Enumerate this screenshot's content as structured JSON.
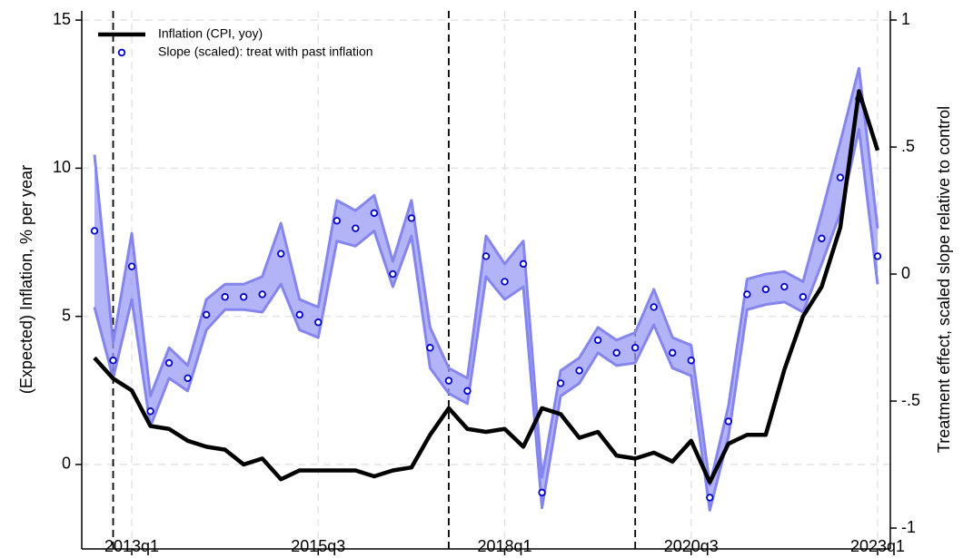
{
  "chart_data": {
    "type": "line",
    "y_label": "(Expected) Inflation, % per year",
    "y2_label": "Treatment effect, scaled slope relative to control",
    "categories": [
      null,
      null,
      "2013q1",
      null,
      null,
      null,
      null,
      null,
      null,
      null,
      null,
      null,
      "2015q3",
      null,
      null,
      null,
      null,
      null,
      null,
      null,
      null,
      null,
      "2018q1",
      null,
      null,
      null,
      null,
      null,
      null,
      null,
      null,
      null,
      "2020q3",
      null,
      null,
      null,
      null,
      null,
      null,
      null,
      null,
      null,
      "2023q1"
    ],
    "ylim": [
      -2.85,
      15.31
    ],
    "yticks": [
      0,
      5,
      10,
      15
    ],
    "y2lim": [
      -1.082,
      1.036
    ],
    "y2ticks": [
      -1,
      {
        "value": -0.5,
        "label": "-.5"
      },
      0,
      {
        "value": 0.5,
        "label": ".5"
      },
      1
    ],
    "grid": true,
    "legend": "top-left",
    "series": [
      {
        "name": "Inflation (CPI, yoy)",
        "type": "line",
        "color": "#000000",
        "values": [
          3.6,
          2.9,
          2.5,
          1.3,
          1.2,
          0.8,
          0.6,
          0.5,
          0.0,
          0.2,
          -0.5,
          -0.2,
          -0.2,
          -0.2,
          -0.2,
          -0.4,
          -0.2,
          -0.1,
          1.0,
          1.9,
          1.2,
          1.1,
          1.2,
          0.6,
          1.9,
          1.7,
          0.9,
          1.1,
          0.3,
          0.2,
          0.4,
          0.1,
          0.8,
          -0.6,
          0.7,
          1.0,
          1.0,
          3.2,
          5.0,
          6.0,
          8.0,
          12.6,
          10.6
        ]
      },
      {
        "name": "Slope (scaled): treat with past inflation",
        "type": "scatter",
        "axis": "y2",
        "color": "#0000cc",
        "band_color": "#9a9af5",
        "values": [
          0.17,
          -0.34,
          0.03,
          -0.54,
          -0.35,
          -0.41,
          -0.16,
          -0.09,
          -0.09,
          -0.08,
          0.08,
          -0.16,
          -0.19,
          0.21,
          0.18,
          0.24,
          0.0,
          0.22,
          -0.29,
          -0.42,
          -0.46,
          0.07,
          -0.03,
          0.04,
          -0.86,
          -0.43,
          -0.38,
          -0.26,
          -0.31,
          -0.29,
          -0.13,
          -0.31,
          -0.34,
          -0.88,
          -0.58,
          -0.08,
          -0.06,
          -0.05,
          -0.09,
          0.14,
          0.38,
          0.69,
          0.07
        ],
        "ci_lower": [
          -0.13,
          -0.41,
          -0.1,
          -0.6,
          -0.41,
          -0.46,
          -0.22,
          -0.14,
          -0.14,
          -0.15,
          -0.04,
          -0.22,
          -0.25,
          0.13,
          0.11,
          0.17,
          -0.05,
          0.15,
          -0.37,
          -0.47,
          -0.51,
          -0.01,
          -0.1,
          -0.05,
          -0.92,
          -0.48,
          -0.43,
          -0.31,
          -0.36,
          -0.35,
          -0.2,
          -0.37,
          -0.4,
          -0.93,
          -0.64,
          -0.14,
          -0.12,
          -0.11,
          -0.15,
          0.04,
          0.24,
          0.57,
          -0.04
        ],
        "ci_upper": [
          0.47,
          -0.27,
          0.16,
          -0.48,
          -0.29,
          -0.36,
          -0.1,
          -0.04,
          -0.04,
          -0.01,
          0.2,
          -0.1,
          -0.13,
          0.29,
          0.25,
          0.31,
          0.05,
          0.29,
          -0.21,
          -0.37,
          -0.41,
          0.15,
          0.04,
          0.13,
          -0.8,
          -0.38,
          -0.33,
          -0.21,
          -0.26,
          -0.23,
          -0.06,
          -0.25,
          -0.28,
          -0.83,
          -0.52,
          -0.02,
          0.0,
          0.01,
          -0.03,
          0.24,
          0.52,
          0.81,
          0.18
        ]
      }
    ]
  }
}
